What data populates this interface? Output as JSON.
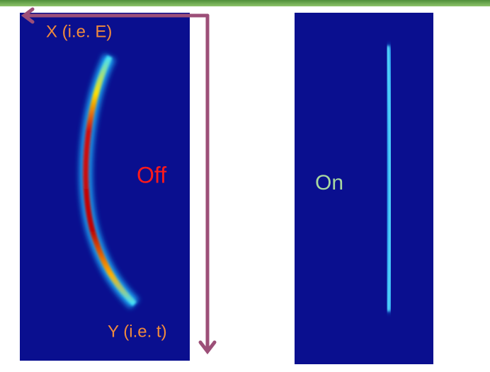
{
  "images": [
    {
      "labels": {
        "x_axis": "X (i.e. E)",
        "state": "Off",
        "y_axis": "Y (i.e. t)"
      }
    },
    {
      "labels": {
        "state": "On"
      }
    }
  ]
}
